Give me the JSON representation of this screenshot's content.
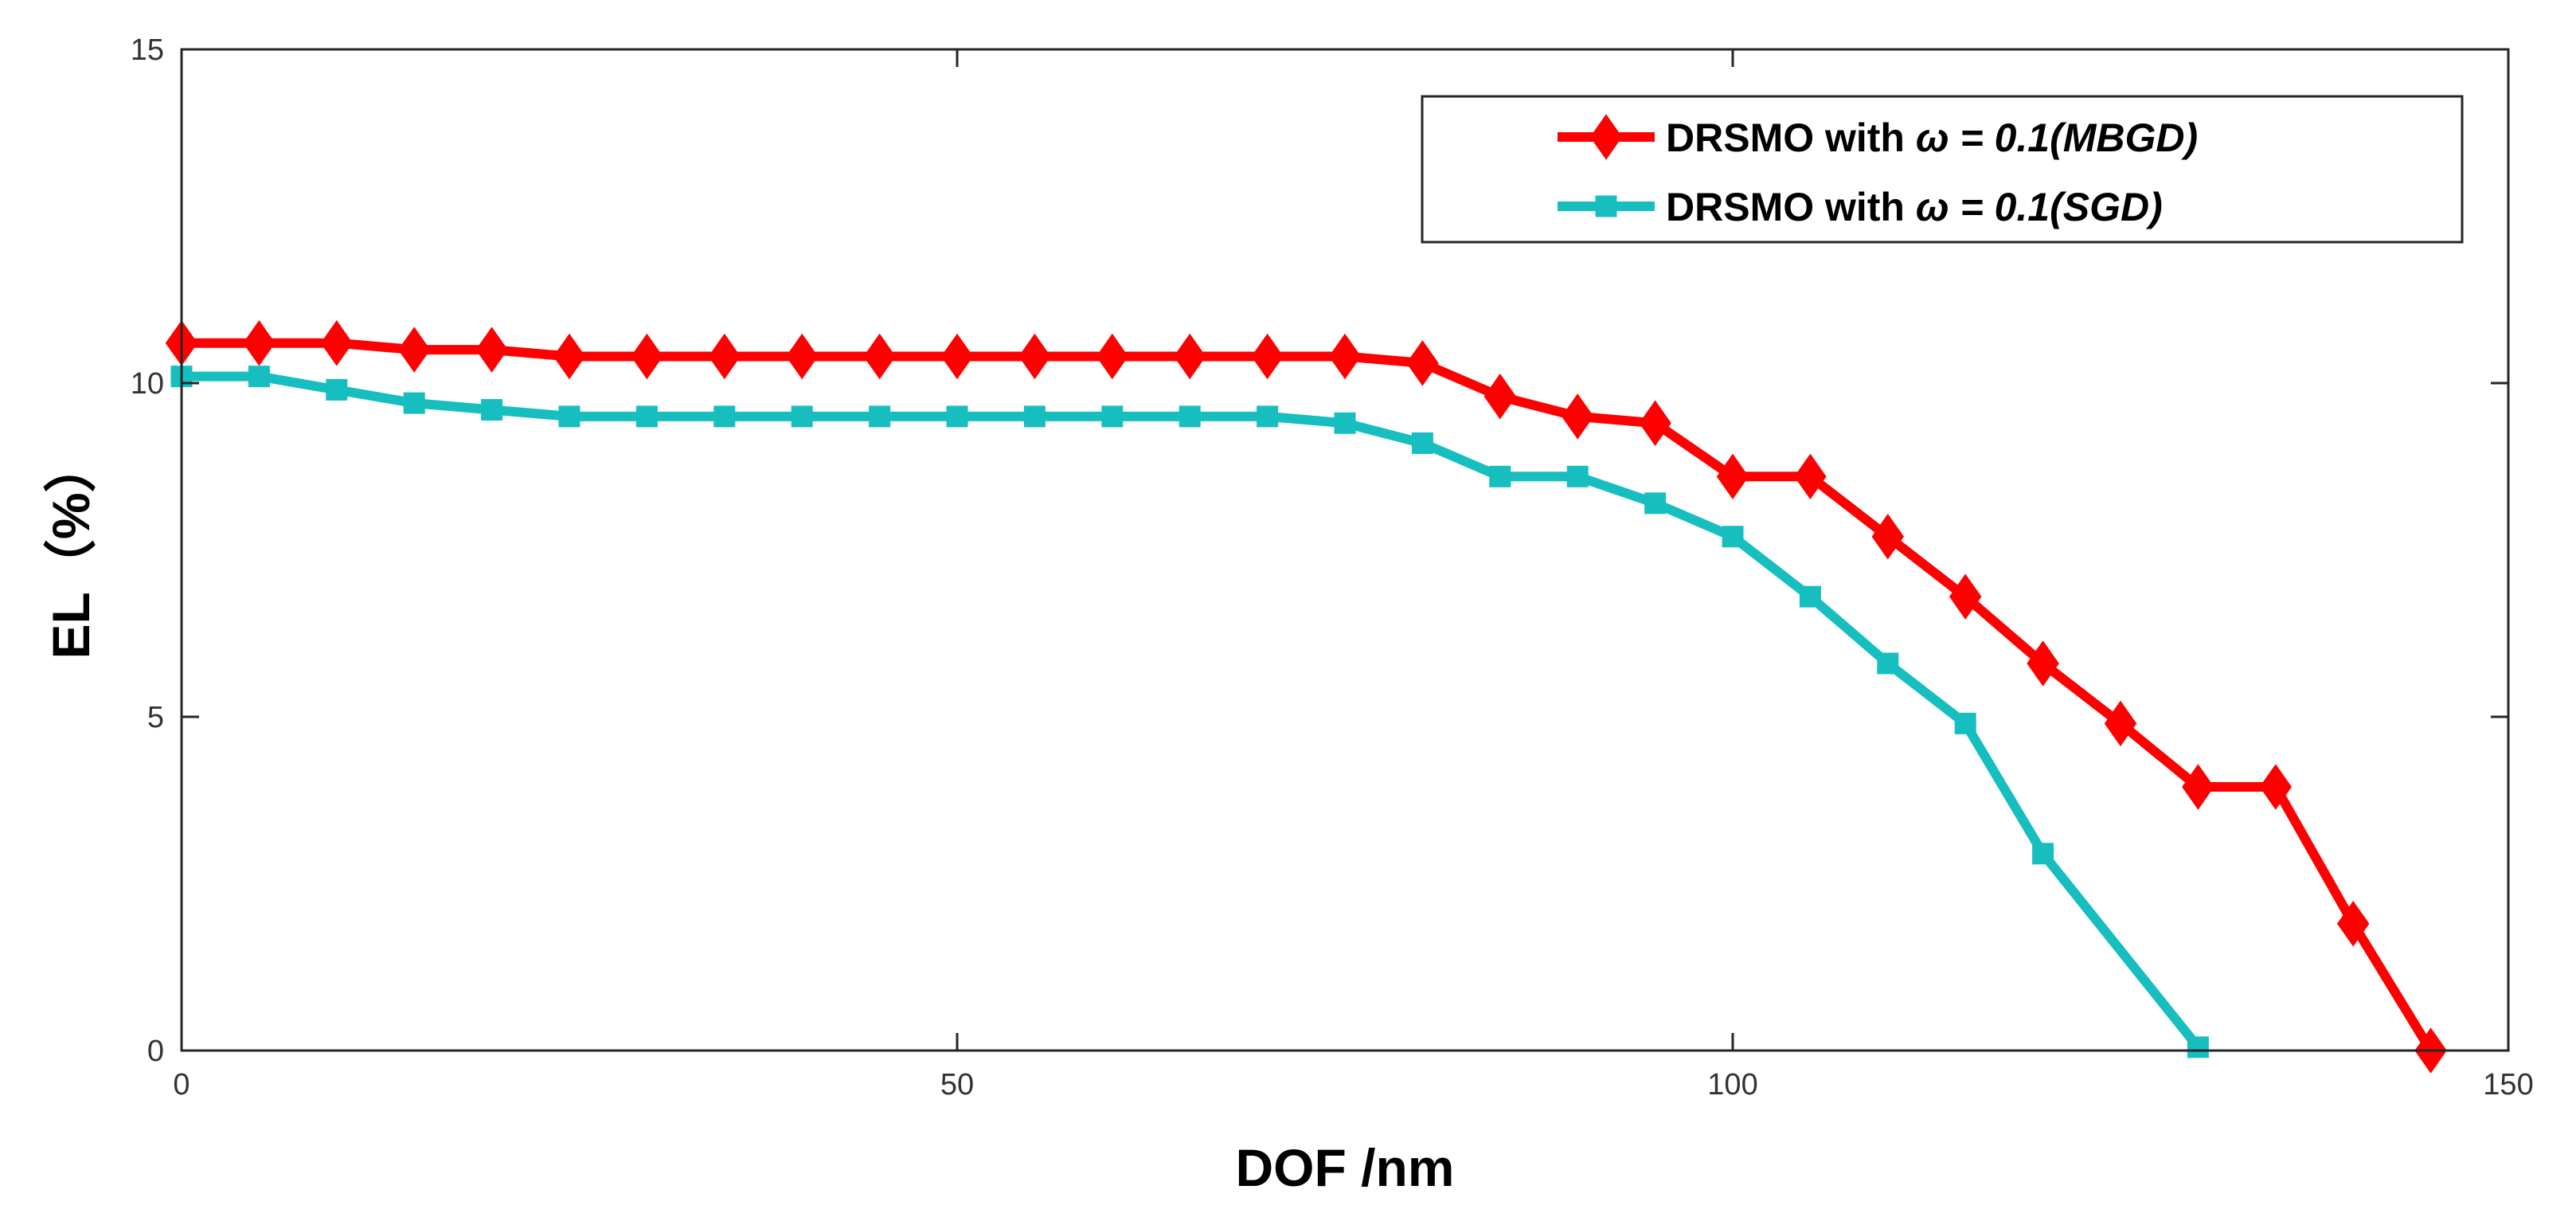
{
  "chart_data": {
    "type": "line",
    "xlabel": "DOF /nm",
    "ylabel": "EL（%）",
    "xlim": [
      0,
      150
    ],
    "ylim": [
      0,
      15
    ],
    "xticks": [
      0,
      50,
      100,
      150
    ],
    "yticks": [
      0,
      5,
      10,
      15
    ],
    "grid": false,
    "legend_position": "top-right",
    "series": [
      {
        "name": "DRSMO with ω = 0.1(MBGD)",
        "legend": {
          "prefix": "DRSMO with ",
          "omega": "ω",
          "suffix": " = 0.1(MBGD)"
        },
        "color": "#ff0000",
        "marker": "diamond",
        "x": [
          0,
          5,
          10,
          15,
          20,
          25,
          30,
          35,
          40,
          45,
          50,
          55,
          60,
          65,
          70,
          75,
          80,
          85,
          90,
          95,
          100,
          105,
          110,
          115,
          120,
          125,
          130,
          135,
          140,
          145
        ],
        "y": [
          10.6,
          10.6,
          10.6,
          10.5,
          10.5,
          10.4,
          10.4,
          10.4,
          10.4,
          10.4,
          10.4,
          10.4,
          10.4,
          10.4,
          10.4,
          10.4,
          10.3,
          9.8,
          9.5,
          9.4,
          8.6,
          8.6,
          7.7,
          6.8,
          5.8,
          4.9,
          3.95,
          3.95,
          1.9,
          0
        ]
      },
      {
        "name": "DRSMO with ω = 0.1(SGD)",
        "legend": {
          "prefix": "DRSMO with ",
          "omega": "ω",
          "suffix": " = 0.1(SGD)"
        },
        "color": "#17bebf",
        "marker": "square",
        "x": [
          0,
          5,
          10,
          15,
          20,
          25,
          30,
          35,
          40,
          45,
          50,
          55,
          60,
          65,
          70,
          75,
          80,
          85,
          90,
          95,
          100,
          105,
          110,
          115,
          120,
          130
        ],
        "y": [
          10.1,
          10.1,
          9.9,
          9.7,
          9.6,
          9.5,
          9.5,
          9.5,
          9.5,
          9.5,
          9.5,
          9.5,
          9.5,
          9.5,
          9.5,
          9.4,
          9.1,
          8.6,
          8.6,
          8.2,
          7.7,
          6.8,
          5.8,
          4.9,
          2.95,
          0.05
        ]
      }
    ]
  }
}
